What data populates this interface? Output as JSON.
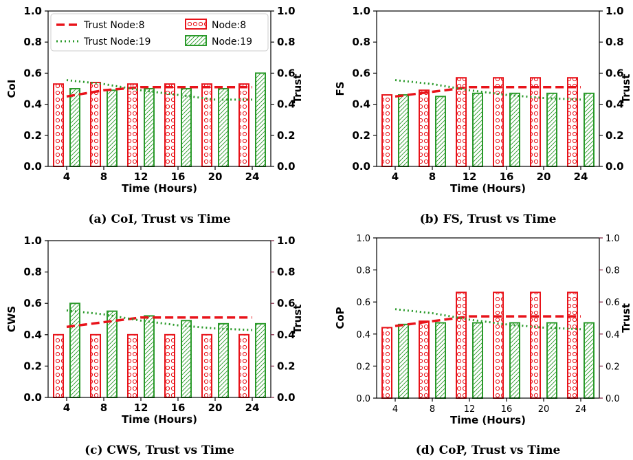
{
  "chart_data": [
    {
      "type": "bar",
      "caption": "(a) CoI, Trust vs Time",
      "xlabel": "Time (Hours)",
      "ylabel": "CoI",
      "y2label": "Trust",
      "categories": [
        "4",
        "8",
        "12",
        "16",
        "20",
        "24"
      ],
      "ylim": [
        0,
        1.0
      ],
      "y2lim": [
        0,
        1.0
      ],
      "yticks": [
        "0.0",
        "0.2",
        "0.4",
        "0.6",
        "0.8",
        "1.0"
      ],
      "bar_series": [
        {
          "name": "Node:8",
          "values": [
            0.53,
            0.54,
            0.53,
            0.53,
            0.53,
            0.53
          ]
        },
        {
          "name": "Node:19",
          "values": [
            0.5,
            0.49,
            0.5,
            0.5,
            0.5,
            0.6
          ]
        }
      ],
      "line_series": [
        {
          "name": "Trust Node:8",
          "values": [
            0.45,
            0.49,
            0.51,
            0.51,
            0.51,
            0.51
          ]
        },
        {
          "name": "Trust Node:19",
          "values": [
            0.555,
            0.53,
            0.49,
            0.46,
            0.43,
            0.43
          ]
        }
      ],
      "legend": "top"
    },
    {
      "type": "bar",
      "caption": "(b) FS, Trust vs Time",
      "xlabel": "Time (Hours)",
      "ylabel": "FS",
      "y2label": "Trust",
      "categories": [
        "4",
        "8",
        "12",
        "16",
        "20",
        "24"
      ],
      "ylim": [
        0,
        1.0
      ],
      "y2lim": [
        0,
        1.0
      ],
      "yticks": [
        "0.0",
        "0.2",
        "0.4",
        "0.6",
        "0.8",
        "1.0"
      ],
      "bar_series": [
        {
          "name": "Node:8",
          "values": [
            0.46,
            0.49,
            0.57,
            0.57,
            0.57,
            0.57
          ]
        },
        {
          "name": "Node:19",
          "values": [
            0.46,
            0.45,
            0.47,
            0.47,
            0.47,
            0.47
          ]
        }
      ],
      "line_series": [
        {
          "name": "Trust Node:8",
          "values": [
            0.45,
            0.48,
            0.51,
            0.51,
            0.51,
            0.51
          ]
        },
        {
          "name": "Trust Node:19",
          "values": [
            0.555,
            0.53,
            0.49,
            0.46,
            0.44,
            0.43
          ]
        }
      ]
    },
    {
      "type": "bar",
      "caption": "(c) CWS, Trust vs Time",
      "xlabel": "Time (Hours)",
      "ylabel": "CWS",
      "y2label": "Trust",
      "categories": [
        "4",
        "8",
        "12",
        "16",
        "20",
        "24"
      ],
      "ylim": [
        0,
        1.0
      ],
      "y2lim": [
        0,
        1.0
      ],
      "yticks": [
        "0.0",
        "0.2",
        "0.4",
        "0.6",
        "0.8",
        "1.0"
      ],
      "bar_series": [
        {
          "name": "Node:8",
          "values": [
            0.4,
            0.4,
            0.4,
            0.4,
            0.4,
            0.4
          ]
        },
        {
          "name": "Node:19",
          "values": [
            0.6,
            0.55,
            0.52,
            0.49,
            0.47,
            0.47
          ]
        }
      ],
      "line_series": [
        {
          "name": "Trust Node:8",
          "values": [
            0.45,
            0.48,
            0.51,
            0.51,
            0.51,
            0.51
          ]
        },
        {
          "name": "Trust Node:19",
          "values": [
            0.555,
            0.53,
            0.49,
            0.46,
            0.44,
            0.43
          ]
        }
      ]
    },
    {
      "type": "bar",
      "caption": "(d) CoP, Trust vs Time",
      "xlabel": "Time (Hours)",
      "ylabel": "CoP",
      "y2label": "Trust",
      "categories": [
        "4",
        "8",
        "12",
        "16",
        "20",
        "24"
      ],
      "ylim": [
        0,
        1.0
      ],
      "y2lim": [
        0,
        1.0
      ],
      "yticks": [
        "0.0",
        "0.2",
        "0.4",
        "0.6",
        "0.8",
        "1.0"
      ],
      "bar_series": [
        {
          "name": "Node:8",
          "values": [
            0.44,
            0.48,
            0.66,
            0.66,
            0.66,
            0.66
          ]
        },
        {
          "name": "Node:19",
          "values": [
            0.46,
            0.47,
            0.47,
            0.47,
            0.47,
            0.47
          ]
        }
      ],
      "line_series": [
        {
          "name": "Trust Node:8",
          "values": [
            0.45,
            0.48,
            0.51,
            0.51,
            0.51,
            0.51
          ]
        },
        {
          "name": "Trust Node:19",
          "values": [
            0.555,
            0.53,
            0.49,
            0.46,
            0.44,
            0.43
          ]
        }
      ]
    }
  ],
  "colors": {
    "node8": "#e8131a",
    "node19": "#2a9a2a"
  }
}
